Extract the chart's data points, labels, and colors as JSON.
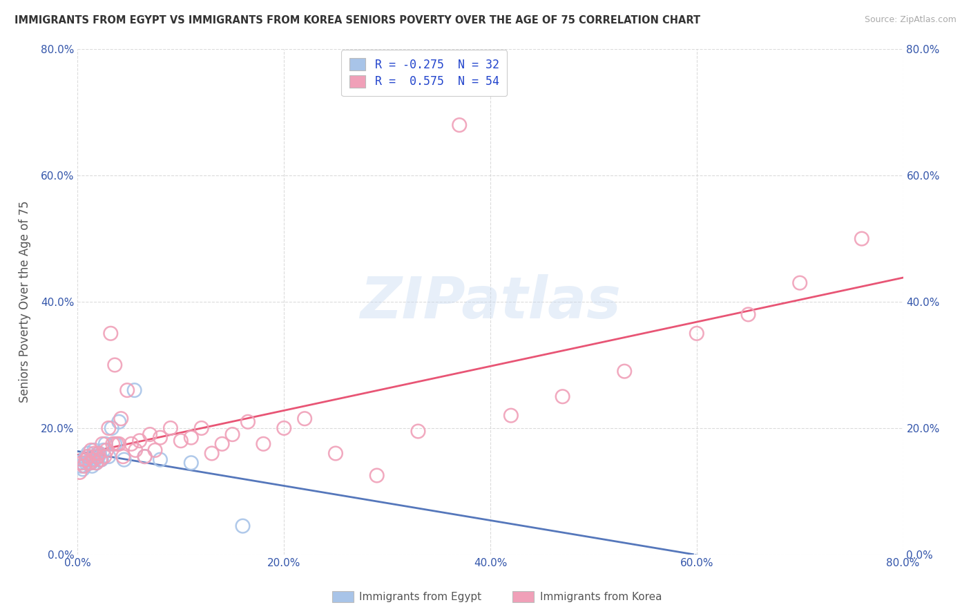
{
  "title": "IMMIGRANTS FROM EGYPT VS IMMIGRANTS FROM KOREA SENIORS POVERTY OVER THE AGE OF 75 CORRELATION CHART",
  "source": "Source: ZipAtlas.com",
  "ylabel": "Seniors Poverty Over the Age of 75",
  "xlim": [
    0.0,
    0.8
  ],
  "ylim": [
    0.0,
    0.8
  ],
  "xticks": [
    0.0,
    0.2,
    0.4,
    0.6,
    0.8
  ],
  "yticks": [
    0.0,
    0.2,
    0.4,
    0.6,
    0.8
  ],
  "xticklabels": [
    "0.0%",
    "20.0%",
    "40.0%",
    "60.0%",
    "80.0%"
  ],
  "yticklabels": [
    "0.0%",
    "20.0%",
    "40.0%",
    "60.0%",
    "80.0%"
  ],
  "egypt_color": "#a8c4e8",
  "korea_color": "#f0a0b8",
  "egypt_line_color": "#5577bb",
  "korea_line_color": "#e85575",
  "egypt_R": -0.275,
  "egypt_N": 32,
  "korea_R": 0.575,
  "korea_N": 54,
  "watermark_text": "ZIPatlas",
  "background_color": "#ffffff",
  "grid_color": "#cccccc",
  "title_color": "#333333",
  "axis_label_color": "#555555",
  "tick_color": "#3355aa",
  "egypt_scatter_x": [
    0.001,
    0.003,
    0.005,
    0.006,
    0.007,
    0.008,
    0.009,
    0.01,
    0.011,
    0.012,
    0.013,
    0.014,
    0.015,
    0.016,
    0.017,
    0.018,
    0.02,
    0.021,
    0.022,
    0.023,
    0.025,
    0.027,
    0.03,
    0.033,
    0.036,
    0.04,
    0.045,
    0.055,
    0.065,
    0.08,
    0.11,
    0.16
  ],
  "egypt_scatter_y": [
    0.145,
    0.14,
    0.135,
    0.15,
    0.14,
    0.145,
    0.155,
    0.16,
    0.145,
    0.15,
    0.145,
    0.14,
    0.155,
    0.165,
    0.15,
    0.145,
    0.155,
    0.16,
    0.15,
    0.15,
    0.165,
    0.175,
    0.155,
    0.2,
    0.175,
    0.21,
    0.15,
    0.26,
    0.155,
    0.15,
    0.145,
    0.045
  ],
  "korea_scatter_x": [
    0.002,
    0.004,
    0.006,
    0.008,
    0.01,
    0.012,
    0.013,
    0.015,
    0.016,
    0.018,
    0.019,
    0.02,
    0.022,
    0.024,
    0.026,
    0.028,
    0.03,
    0.032,
    0.034,
    0.036,
    0.038,
    0.04,
    0.042,
    0.044,
    0.048,
    0.052,
    0.056,
    0.06,
    0.065,
    0.07,
    0.075,
    0.08,
    0.09,
    0.1,
    0.11,
    0.12,
    0.13,
    0.14,
    0.15,
    0.165,
    0.18,
    0.2,
    0.22,
    0.25,
    0.29,
    0.33,
    0.37,
    0.42,
    0.47,
    0.53,
    0.6,
    0.65,
    0.7,
    0.76
  ],
  "korea_scatter_y": [
    0.13,
    0.145,
    0.14,
    0.15,
    0.155,
    0.145,
    0.165,
    0.15,
    0.16,
    0.145,
    0.155,
    0.16,
    0.15,
    0.175,
    0.155,
    0.165,
    0.2,
    0.35,
    0.175,
    0.3,
    0.175,
    0.175,
    0.215,
    0.155,
    0.26,
    0.175,
    0.165,
    0.18,
    0.155,
    0.19,
    0.165,
    0.185,
    0.2,
    0.18,
    0.185,
    0.2,
    0.16,
    0.175,
    0.19,
    0.21,
    0.175,
    0.2,
    0.215,
    0.16,
    0.125,
    0.195,
    0.68,
    0.22,
    0.25,
    0.29,
    0.35,
    0.38,
    0.43,
    0.5
  ],
  "legend_labels": [
    "R = -0.275  N = 32",
    "R =  0.575  N = 54"
  ],
  "bottom_legend": [
    "Immigrants from Egypt",
    "Immigrants from Korea"
  ]
}
